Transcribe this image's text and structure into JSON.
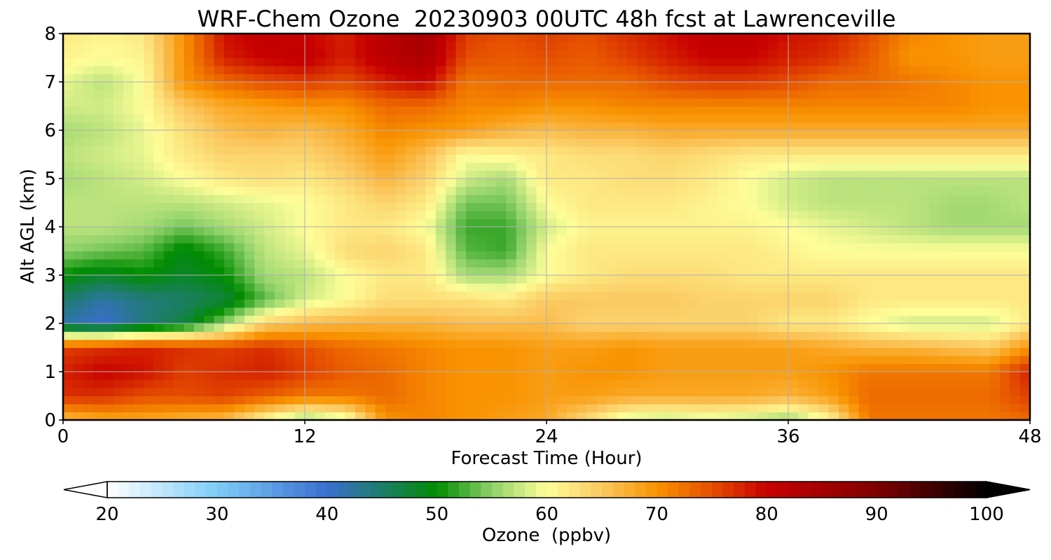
{
  "chart_data": {
    "type": "heatmap",
    "title": "WRF-Chem Ozone  20230903 00UTC 48h fcst at Lawrenceville",
    "xlabel": "Forecast Time (Hour)",
    "ylabel": "Alt AGL (km)",
    "xlim": [
      0,
      48
    ],
    "ylim": [
      0,
      8
    ],
    "x_ticks": [
      "0",
      "12",
      "24",
      "36",
      "48"
    ],
    "y_ticks": [
      "0",
      "1",
      "2",
      "3",
      "4",
      "5",
      "6",
      "7",
      "8"
    ],
    "grid": true,
    "x": [
      0,
      2,
      4,
      6,
      8,
      10,
      12,
      14,
      16,
      18,
      20,
      22,
      24,
      26,
      28,
      30,
      32,
      34,
      36,
      38,
      40,
      42,
      44,
      46,
      48
    ],
    "y": [
      0,
      0.5,
      1,
      1.5,
      2,
      2.5,
      3,
      3.5,
      4,
      4.5,
      5,
      5.5,
      6,
      6.5,
      7,
      7.5,
      8
    ],
    "z_units": "ppbv",
    "z": [
      [
        66,
        68,
        68,
        67,
        66,
        60,
        55,
        58,
        70,
        71,
        70,
        69,
        68,
        63,
        58,
        57,
        58,
        57,
        55,
        60,
        72,
        72,
        72,
        72,
        73
      ],
      [
        77,
        77,
        75,
        75,
        76,
        74,
        72,
        72,
        73,
        71,
        70,
        70,
        69,
        69,
        68,
        68,
        68,
        68,
        67,
        69,
        73,
        73,
        73,
        73,
        76
      ],
      [
        78,
        80,
        79,
        76,
        77,
        78,
        76,
        74,
        73,
        71,
        70,
        70,
        69,
        70,
        70,
        69,
        69,
        69,
        69,
        70,
        72,
        72,
        72,
        72,
        78
      ],
      [
        76,
        77,
        78,
        77,
        76,
        77,
        75,
        73,
        72,
        71,
        70,
        70,
        69,
        69,
        70,
        69,
        69,
        69,
        69,
        68,
        67,
        67,
        66,
        65,
        70
      ],
      [
        42,
        40,
        44,
        47,
        55,
        64,
        66,
        67,
        67,
        67,
        66,
        66,
        66,
        64,
        64,
        64,
        64,
        64,
        62,
        62,
        60,
        58,
        58,
        58,
        62
      ],
      [
        45,
        42,
        44,
        45,
        47,
        53,
        58,
        60,
        63,
        63,
        63,
        62,
        65,
        65,
        65,
        65,
        64,
        64,
        64,
        64,
        62,
        62,
        62,
        62,
        62
      ],
      [
        50,
        48,
        50,
        48,
        50,
        56,
        57,
        60,
        62,
        62,
        56,
        56,
        60,
        62,
        63,
        63,
        63,
        62,
        62,
        62,
        62,
        62,
        62,
        62,
        62
      ],
      [
        55,
        54,
        53,
        49,
        52,
        57,
        59,
        63,
        64,
        62,
        53,
        52,
        60,
        62,
        62,
        62,
        62,
        62,
        61,
        60,
        60,
        60,
        60,
        60,
        60
      ],
      [
        57,
        57,
        56,
        54,
        56,
        58,
        60,
        62,
        62,
        60,
        52,
        52,
        58,
        61,
        61,
        61,
        61,
        61,
        60,
        59,
        58,
        57,
        56,
        56,
        56
      ],
      [
        57,
        57,
        57,
        57,
        58,
        59,
        60,
        62,
        64,
        62,
        54,
        54,
        60,
        62,
        62,
        62,
        61,
        60,
        58,
        57,
        57,
        57,
        56,
        56,
        57
      ],
      [
        56,
        57,
        58,
        60,
        62,
        63,
        62,
        64,
        67,
        64,
        58,
        56,
        62,
        62,
        63,
        63,
        62,
        60,
        58,
        57,
        57,
        57,
        57,
        57,
        57
      ],
      [
        57,
        58,
        59,
        62,
        64,
        64,
        64,
        66,
        69,
        66,
        60,
        61,
        62,
        63,
        63,
        64,
        63,
        62,
        62,
        62,
        62,
        62,
        62,
        62,
        62
      ],
      [
        56,
        57,
        59,
        63,
        66,
        67,
        66,
        68,
        71,
        70,
        69,
        67,
        66,
        67,
        67,
        68,
        68,
        68,
        68,
        68,
        68,
        68,
        68,
        68,
        68
      ],
      [
        58,
        58,
        60,
        65,
        68,
        69,
        70,
        70,
        73,
        73,
        71,
        71,
        70,
        70,
        71,
        71,
        71,
        71,
        71,
        71,
        71,
        71,
        71,
        70,
        70
      ],
      [
        59,
        57,
        60,
        70,
        73,
        75,
        76,
        75,
        78,
        80,
        72,
        73,
        73,
        73,
        73,
        75,
        76,
        76,
        75,
        73,
        73,
        72,
        71,
        70,
        70
      ],
      [
        61,
        60,
        61,
        70,
        78,
        80,
        81,
        78,
        82,
        84,
        75,
        74,
        75,
        74,
        76,
        78,
        80,
        80,
        78,
        77,
        74,
        70,
        70,
        69,
        69
      ],
      [
        62,
        61,
        62,
        70,
        79,
        81,
        80,
        78,
        82,
        85,
        76,
        75,
        76,
        75,
        77,
        79,
        81,
        81,
        79,
        78,
        75,
        71,
        70,
        69,
        69
      ]
    ],
    "colorbar": {
      "label": "Ozone  (ppbv)",
      "min": 20,
      "max": 100,
      "ticks": [
        "20",
        "30",
        "40",
        "50",
        "60",
        "70",
        "80",
        "90",
        "100"
      ],
      "extend": "both",
      "colors": [
        {
          "value": 20,
          "color": "#ffffff"
        },
        {
          "value": 30,
          "color": "#7dccf8"
        },
        {
          "value": 40,
          "color": "#3a6ed0"
        },
        {
          "value": 50,
          "color": "#008c00"
        },
        {
          "value": 55,
          "color": "#8fd16a"
        },
        {
          "value": 60,
          "color": "#fefe99"
        },
        {
          "value": 65,
          "color": "#fbc860"
        },
        {
          "value": 70,
          "color": "#f99300"
        },
        {
          "value": 75,
          "color": "#e54e00"
        },
        {
          "value": 80,
          "color": "#c80000"
        },
        {
          "value": 90,
          "color": "#800000"
        },
        {
          "value": 100,
          "color": "#000000"
        }
      ]
    }
  }
}
